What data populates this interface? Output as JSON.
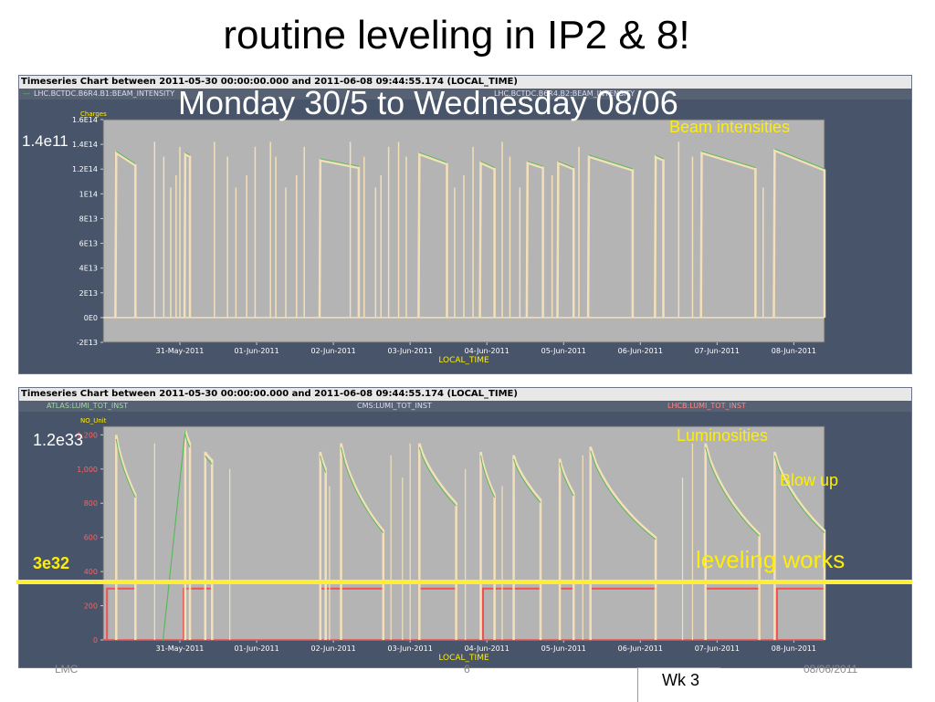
{
  "slide": {
    "title": "routine leveling in IP2 & 8!",
    "subtitle": "Monday 30/5 to Wednesday 08/06",
    "footer_left": "LMC",
    "footer_center": "6",
    "footer_right": "08/06/2011",
    "week_label": "Wk 3"
  },
  "colors": {
    "panel_bg": "#48546a",
    "atlas": "#5cb85c",
    "cms": "#f4e0b8",
    "lhcb": "#f05050",
    "beam1": "#5cb85c",
    "beam2": "#f4e0b8",
    "annotation_yellow": "#ffee00",
    "leveling_line": "#ffee33"
  },
  "annotations": {
    "beam_label": "Beam intensities",
    "beam_peak": "1.4e11",
    "lumi_label": "Luminosities",
    "lumi_peak": "1.2e33",
    "blowup": "Blow up",
    "leveling": "leveling works",
    "level_value": "3e32"
  },
  "chart_data": [
    {
      "type": "line",
      "header": "Timeseries Chart between 2011-05-30 00:00:00.000 and 2011-06-08 09:44:55.174 (LOCAL_TIME)",
      "legend": [
        "LHC.BCTDC.B6R4.B1:BEAM_INTENSITY",
        "LHC.BCTDC.B6R4.B2:BEAM_INTENSITY"
      ],
      "ylabel": "Charges",
      "xlabel": "LOCAL_TIME",
      "x_ticks": [
        "31-May-2011",
        "01-Jun-2011",
        "02-Jun-2011",
        "03-Jun-2011",
        "04-Jun-2011",
        "05-Jun-2011",
        "06-Jun-2011",
        "07-Jun-2011",
        "08-Jun-2011"
      ],
      "y_ticks": [
        "-2E13",
        "0E0",
        "2E13",
        "4E13",
        "6E13",
        "8E13",
        "1E14",
        "1.2E14",
        "1.4E14",
        "1.6E14"
      ],
      "xlim": [
        0,
        9.4
      ],
      "ylim": [
        -20000000000000.0,
        160000000000000.0
      ],
      "fills": [
        {
          "start": 0.17,
          "end": 0.42,
          "peak": 133000000000000.0,
          "end_val": 123000000000000.0
        },
        {
          "start": 1.07,
          "end": 1.13,
          "peak": 132000000000000.0,
          "end_val": 130000000000000.0
        },
        {
          "start": 2.83,
          "end": 3.33,
          "peak": 127000000000000.0,
          "end_val": 121000000000000.0
        },
        {
          "start": 4.12,
          "end": 4.48,
          "peak": 132000000000000.0,
          "end_val": 124000000000000.0
        },
        {
          "start": 4.92,
          "end": 5.1,
          "peak": 125000000000000.0,
          "end_val": 120000000000000.0
        },
        {
          "start": 5.53,
          "end": 5.73,
          "peak": 125000000000000.0,
          "end_val": 121000000000000.0
        },
        {
          "start": 5.93,
          "end": 6.13,
          "peak": 125000000000000.0,
          "end_val": 120000000000000.0
        },
        {
          "start": 6.33,
          "end": 6.9,
          "peak": 130000000000000.0,
          "end_val": 119000000000000.0
        },
        {
          "start": 7.2,
          "end": 7.3,
          "peak": 130000000000000.0,
          "end_val": 127000000000000.0
        },
        {
          "start": 7.8,
          "end": 8.5,
          "peak": 133000000000000.0,
          "end_val": 120000000000000.0
        },
        {
          "start": 8.75,
          "end": 9.4,
          "peak": 135000000000000.0,
          "end_val": 119000000000000.0
        }
      ],
      "spikes": [
        0.67,
        0.79,
        0.88,
        0.95,
        1.0,
        1.45,
        1.62,
        1.73,
        1.87,
        1.98,
        2.18,
        2.25,
        2.38,
        2.52,
        2.62,
        3.22,
        3.4,
        3.55,
        3.62,
        3.72,
        3.85,
        3.95,
        4.58,
        4.7,
        4.82,
        5.2,
        5.3,
        5.43,
        5.85,
        6.2,
        7.5,
        7.68,
        8.6
      ]
    },
    {
      "type": "line",
      "header": "Timeseries Chart between 2011-05-30 00:00:00.000 and 2011-06-08 09:44:55.174 (LOCAL_TIME)",
      "legend": [
        "ATLAS:LUMI_TOT_INST",
        "CMS:LUMI_TOT_INST",
        "LHCB:LUMI_TOT_INST"
      ],
      "ylabel": "NO_Unit",
      "xlabel": "LOCAL_TIME",
      "x_ticks": [
        "31-May-2011",
        "01-Jun-2011",
        "02-Jun-2011",
        "03-Jun-2011",
        "04-Jun-2011",
        "05-Jun-2011",
        "06-Jun-2011",
        "07-Jun-2011",
        "08-Jun-2011"
      ],
      "y_ticks": [
        "0",
        "200",
        "400",
        "600",
        "800",
        "1,000",
        "1,200"
      ],
      "xlim": [
        0,
        9.4
      ],
      "ylim": [
        0,
        1250
      ],
      "lhcb_level": 300,
      "fills": [
        {
          "start": 0.17,
          "end": 0.42,
          "peak": 1200,
          "end_val": 850
        },
        {
          "start": 1.07,
          "end": 1.13,
          "peak": 1230,
          "end_val": 1150
        },
        {
          "start": 1.33,
          "end": 1.42,
          "peak": 1100,
          "end_val": 1050
        },
        {
          "start": 2.83,
          "end": 2.9,
          "peak": 1100,
          "end_val": 1000
        },
        {
          "start": 3.1,
          "end": 3.65,
          "peak": 1150,
          "end_val": 640
        },
        {
          "start": 4.12,
          "end": 4.6,
          "peak": 1150,
          "end_val": 800
        },
        {
          "start": 4.92,
          "end": 5.1,
          "peak": 1100,
          "end_val": 850
        },
        {
          "start": 5.35,
          "end": 5.7,
          "peak": 1080,
          "end_val": 820
        },
        {
          "start": 5.95,
          "end": 6.13,
          "peak": 1060,
          "end_val": 860
        },
        {
          "start": 6.35,
          "end": 7.2,
          "peak": 1130,
          "end_val": 600
        },
        {
          "start": 7.85,
          "end": 8.55,
          "peak": 1150,
          "end_val": 620
        },
        {
          "start": 8.75,
          "end": 9.4,
          "peak": 1100,
          "end_val": 640
        }
      ],
      "lhcb_blocks": [
        [
          0.05,
          0.42
        ],
        [
          1.05,
          1.42
        ],
        [
          2.83,
          3.65
        ],
        [
          4.12,
          4.6
        ],
        [
          4.95,
          5.7
        ],
        [
          5.95,
          6.13
        ],
        [
          6.35,
          7.2
        ],
        [
          7.85,
          8.55
        ],
        [
          8.78,
          9.4
        ]
      ],
      "spikes": [
        0.67,
        1.65,
        2.95,
        3.75,
        3.9,
        4.0,
        4.72,
        5.2,
        6.25,
        7.55,
        7.68
      ]
    }
  ]
}
